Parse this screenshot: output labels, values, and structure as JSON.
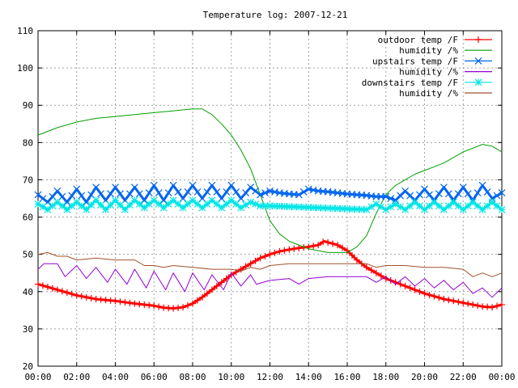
{
  "chart_data": {
    "type": "line",
    "title": "Temperature log: 2007-12-21",
    "xlabel": "",
    "ylabel": "",
    "xlim": [
      "00:00",
      "24:00"
    ],
    "ylim": [
      20,
      110
    ],
    "grid": true,
    "legend_position": "top-right",
    "x_ticks": [
      "00:00",
      "02:00",
      "04:00",
      "06:00",
      "08:00",
      "10:00",
      "12:00",
      "14:00",
      "16:00",
      "18:00",
      "20:00",
      "22:00",
      "00:00"
    ],
    "y_ticks": [
      "20",
      "30",
      "40",
      "50",
      "60",
      "70",
      "80",
      "90",
      "100",
      "110"
    ],
    "series": [
      {
        "name": "outdoor temp /F",
        "color": "#ff0000",
        "marker": "plus",
        "hours": [
          0,
          1,
          2,
          3,
          4,
          5,
          6,
          6.5,
          7,
          7.5,
          8,
          8.5,
          9,
          9.5,
          10,
          10.5,
          11,
          11.5,
          12,
          12.5,
          13,
          13.5,
          14,
          14.5,
          14.8,
          15.5,
          16,
          16.5,
          17,
          17.5,
          18,
          19,
          20,
          21,
          22,
          23,
          23.5,
          24
        ],
        "values": [
          42,
          40.5,
          39,
          38,
          37.5,
          36.8,
          36.2,
          35.7,
          35.5,
          35.8,
          36.8,
          38.5,
          40.5,
          42.5,
          44.5,
          46,
          47.5,
          49,
          50,
          50.8,
          51.3,
          51.7,
          52,
          52.5,
          53.5,
          52.5,
          51,
          48.5,
          46.5,
          45,
          43.5,
          41.5,
          39.5,
          38,
          37,
          36,
          35.8,
          36.5
        ]
      },
      {
        "name": "humidity /%",
        "color": "#00a000",
        "marker": "none",
        "hours": [
          0,
          1,
          2,
          3,
          4,
          5,
          6,
          7,
          8,
          8.5,
          9,
          9.5,
          10,
          10.5,
          11,
          11.5,
          12,
          12.5,
          13,
          13.5,
          14,
          14.5,
          15,
          15.5,
          16,
          16.5,
          17,
          17.5,
          18,
          18.5,
          19,
          19.5,
          20,
          20.5,
          21,
          21.5,
          22,
          22.5,
          23,
          23.5,
          24
        ],
        "values": [
          82,
          84,
          85.5,
          86.5,
          87,
          87.5,
          88,
          88.5,
          89,
          89,
          87.5,
          85,
          82,
          78,
          73,
          66,
          59,
          55.5,
          53.5,
          52.5,
          51.5,
          51,
          50.5,
          50.5,
          50.5,
          52,
          55,
          61,
          66,
          68.5,
          70,
          71.5,
          72.5,
          73.5,
          74.5,
          76,
          77.5,
          78.5,
          79.5,
          79,
          77.5
        ]
      },
      {
        "name": "upstairs temp /F",
        "color": "#0066ee",
        "marker": "cross",
        "hours": [
          0,
          0.5,
          1,
          1.5,
          2,
          2.5,
          3,
          3.5,
          4,
          4.5,
          5,
          5.5,
          6,
          6.5,
          7,
          7.5,
          8,
          8.5,
          9,
          9.5,
          10,
          10.5,
          11,
          11.5,
          12,
          12.5,
          13,
          13.5,
          14,
          14.5,
          15,
          15.5,
          16,
          16.5,
          17,
          17.5,
          18,
          18.5,
          19,
          19.5,
          20,
          20.5,
          21,
          21.5,
          22,
          22.5,
          23,
          23.5,
          24
        ],
        "values": [
          66,
          64,
          67,
          64,
          67.5,
          64,
          68,
          64.5,
          68,
          64.5,
          68,
          64.5,
          68.5,
          64.5,
          68.5,
          65,
          68.5,
          65,
          68.5,
          65,
          68.5,
          65,
          68,
          66,
          67,
          66.5,
          66.2,
          66,
          67.5,
          67,
          66.8,
          66.5,
          66.2,
          66,
          65.8,
          65.5,
          65.5,
          64.5,
          67,
          64.5,
          67.5,
          64.5,
          68,
          64.5,
          68,
          64.5,
          68.5,
          65,
          66.5
        ]
      },
      {
        "name": "humidity /%",
        "color": "#9400d3",
        "marker": "none",
        "hours": [
          0,
          0.3,
          1,
          1.4,
          2,
          2.5,
          3,
          3.6,
          4,
          4.6,
          5,
          5.6,
          6,
          6.6,
          7,
          7.6,
          8,
          8.6,
          9,
          9.6,
          10,
          10.5,
          11,
          11.3,
          12,
          13,
          13.5,
          14,
          15,
          16,
          17,
          17.5,
          18,
          18.5,
          19,
          19.5,
          20,
          20.5,
          21,
          21.5,
          22,
          22.5,
          23,
          23.5,
          24
        ],
        "values": [
          46,
          47.5,
          47.5,
          44,
          47,
          43.5,
          46.5,
          42.5,
          46,
          42,
          46,
          41,
          45.5,
          40.5,
          45,
          40,
          45,
          40.5,
          44.5,
          40.5,
          45,
          41.5,
          44.5,
          42,
          43,
          43.5,
          42,
          43.5,
          44,
          44,
          44,
          42.5,
          44,
          42,
          44,
          41.5,
          43.5,
          41,
          43,
          40.5,
          42.5,
          39.5,
          41,
          38.5,
          41
        ]
      },
      {
        "name": "downstairs temp /F",
        "color": "#00e5e5",
        "marker": "star",
        "hours": [
          0,
          0.5,
          1,
          1.5,
          2,
          2.5,
          3,
          3.5,
          4,
          4.5,
          5,
          5.5,
          6,
          6.5,
          7,
          7.5,
          8,
          8.5,
          9,
          9.5,
          10,
          10.5,
          11,
          11.5,
          12,
          13,
          14,
          15,
          16,
          17,
          17.5,
          18,
          18.5,
          19,
          19.5,
          20,
          20.5,
          21,
          21.5,
          22,
          22.5,
          23,
          23.5,
          24
        ],
        "values": [
          63.5,
          62,
          64,
          62,
          64,
          62,
          64.5,
          62,
          64.5,
          62,
          64.5,
          62.5,
          64.5,
          62.5,
          64.5,
          62.5,
          64.5,
          62.5,
          64.5,
          62.5,
          64.5,
          62.5,
          64,
          63,
          63,
          62.8,
          62.6,
          62.4,
          62.2,
          62,
          63.5,
          62,
          63.5,
          62,
          64,
          62,
          64,
          62,
          64,
          62,
          64,
          62,
          64,
          62
        ]
      },
      {
        "name": "humidity /%",
        "color": "#a0522d",
        "marker": "none",
        "hours": [
          0,
          0.5,
          1,
          1.5,
          2,
          3,
          4,
          5,
          5.5,
          6,
          6.5,
          7,
          8,
          9,
          10,
          10.5,
          11,
          11.5,
          12,
          13,
          14,
          15,
          16,
          17,
          17.5,
          18,
          19,
          20,
          21,
          22,
          22.5,
          23,
          23.5,
          24
        ],
        "values": [
          50,
          50.5,
          49.5,
          49.5,
          48.5,
          49,
          48.5,
          48.5,
          47,
          47,
          46.5,
          47,
          46.5,
          46,
          46,
          45.5,
          46.5,
          46,
          47,
          47.5,
          47.5,
          47.5,
          47.5,
          47.5,
          46.5,
          47,
          47,
          46.5,
          46.5,
          46,
          44,
          45,
          44,
          45
        ]
      }
    ]
  }
}
